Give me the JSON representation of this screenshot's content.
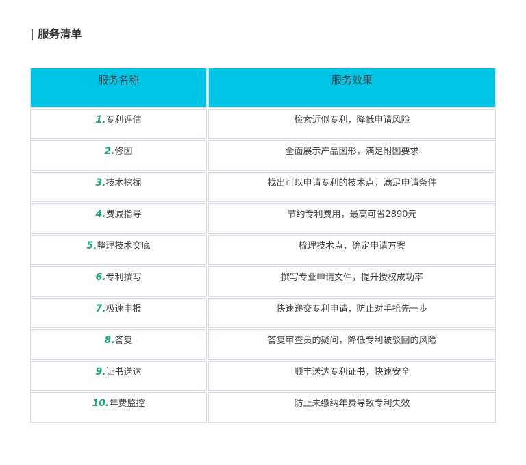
{
  "section_title": "| 服务清单",
  "table": {
    "headers": [
      "服务名称",
      "服务效果"
    ],
    "rows": [
      {
        "num": "1.",
        "name": "专利评估",
        "effect": "检索近似专利，降低申请风险"
      },
      {
        "num": "2.",
        "name": "修图",
        "effect": "全面展示产品图形，满足附图要求"
      },
      {
        "num": "3.",
        "name": "技术挖掘",
        "effect": "找出可以申请专利的技术点，满足申请条件"
      },
      {
        "num": "4.",
        "name": "费减指导",
        "effect": "节约专利费用，最高可省2890元"
      },
      {
        "num": "5.",
        "name": "整理技术交底",
        "effect": "梳理技术点，确定申请方案"
      },
      {
        "num": "6.",
        "name": "专利撰写",
        "effect": "撰写专业申请文件，提升授权成功率"
      },
      {
        "num": "7.",
        "name": "极速申报",
        "effect": "快速递交专利申请，防止对手抢先一步"
      },
      {
        "num": "8.",
        "name": "答复",
        "effect": "答复审查员的疑问，降低专利被驳回的风险"
      },
      {
        "num": "9.",
        "name": "证书送达",
        "effect": "顺丰送达专利证书，快速安全"
      },
      {
        "num": "10.",
        "name": "年费监控",
        "effect": "防止未缴纳年费导致专利失效"
      }
    ]
  },
  "colors": {
    "header_bg": "#00c5e6",
    "number": "#16a97c",
    "border": "#ddd9ee"
  }
}
